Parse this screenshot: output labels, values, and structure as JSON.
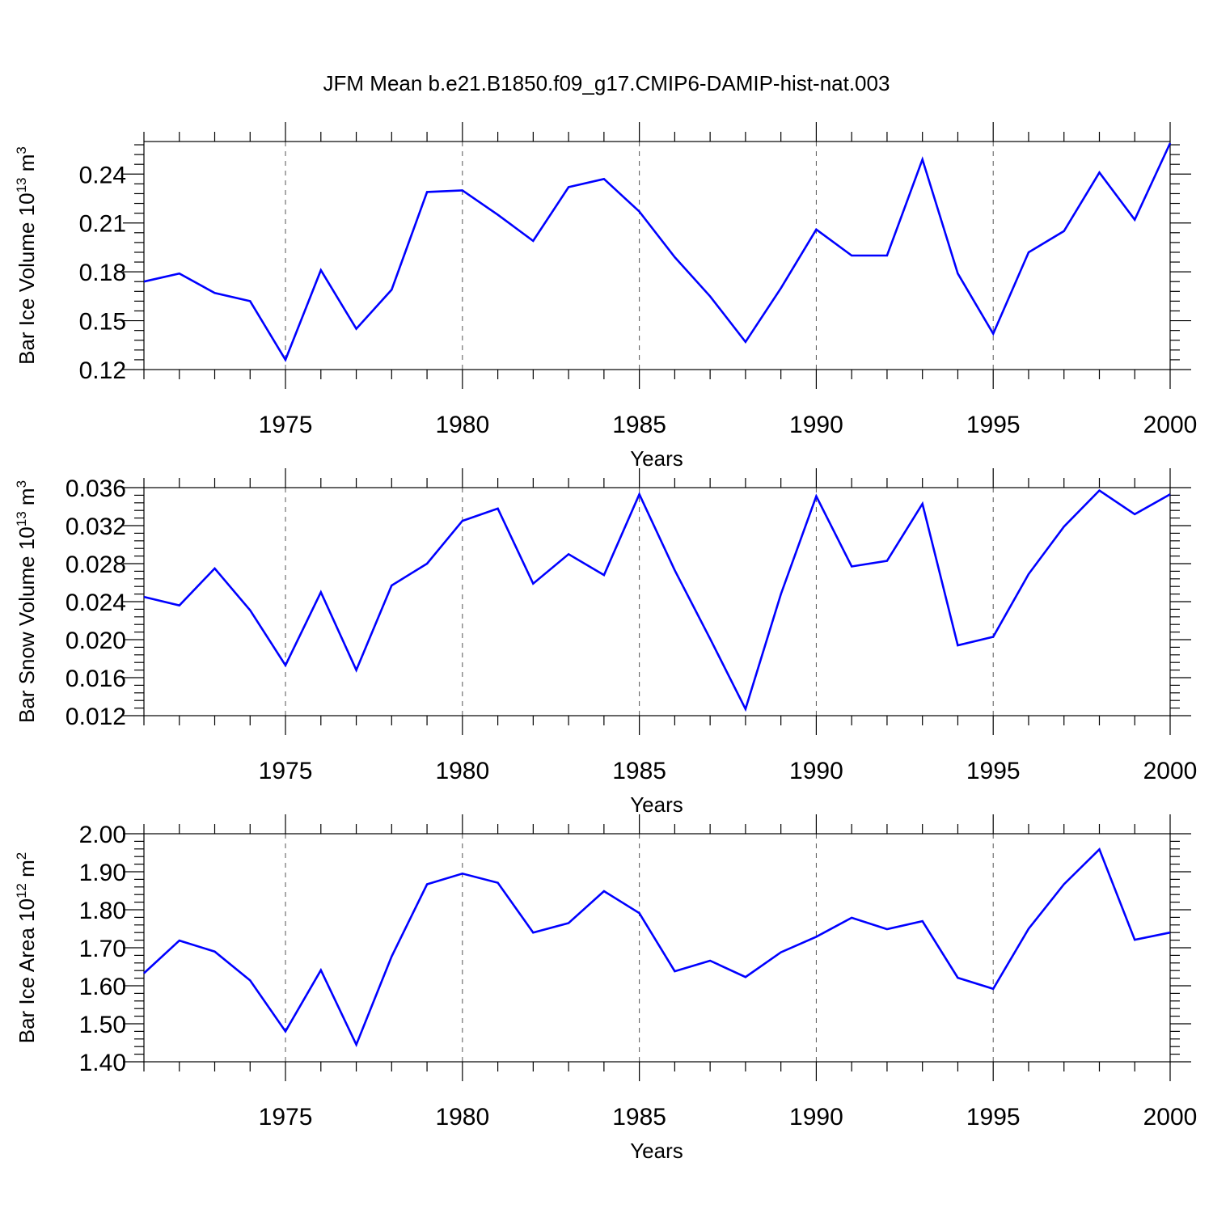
{
  "title": "JFM Mean b.e21.B1850.f09_g17.CMIP6-DAMIP-hist-nat.003",
  "chart_data": [
    {
      "type": "line",
      "name": "bar-ice-volume",
      "ylabel": "Bar Ice Volume",
      "ylabel_unit_base": "10",
      "ylabel_unit_exp": "13",
      "ylabel_unit": "m",
      "ylabel_unit_pow": "3",
      "xlabel": "Years",
      "xlim": [
        1971,
        2000
      ],
      "ylim": [
        0.12,
        0.26
      ],
      "xticks": [
        1975,
        1980,
        1985,
        1990,
        1995,
        2000
      ],
      "xtick_labels": [
        "1975",
        "1980",
        "1985",
        "1990",
        "1995",
        "2000"
      ],
      "yticks": [
        0.12,
        0.15,
        0.18,
        0.21,
        0.24
      ],
      "ytick_labels": [
        "0.12",
        "0.15",
        "0.18",
        "0.21",
        "0.24"
      ],
      "color": "#0000ff",
      "x": [
        1971,
        1972,
        1973,
        1974,
        1975,
        1976,
        1977,
        1978,
        1979,
        1980,
        1981,
        1982,
        1983,
        1984,
        1985,
        1986,
        1987,
        1988,
        1989,
        1990,
        1991,
        1992,
        1993,
        1994,
        1995,
        1996,
        1997,
        1998,
        1999,
        2000
      ],
      "y": [
        0.174,
        0.179,
        0.167,
        0.162,
        0.126,
        0.181,
        0.145,
        0.169,
        0.229,
        0.23,
        0.215,
        0.199,
        0.232,
        0.237,
        0.217,
        0.189,
        0.165,
        0.137,
        0.17,
        0.206,
        0.19,
        0.19,
        0.249,
        0.179,
        0.142,
        0.192,
        0.205,
        0.241,
        0.212,
        0.259
      ]
    },
    {
      "type": "line",
      "name": "bar-snow-volume",
      "ylabel": "Bar Snow Volume",
      "ylabel_unit_base": "10",
      "ylabel_unit_exp": "13",
      "ylabel_unit": "m",
      "ylabel_unit_pow": "3",
      "xlabel": "Years",
      "xlim": [
        1971,
        2000
      ],
      "ylim": [
        0.012,
        0.036
      ],
      "xticks": [
        1975,
        1980,
        1985,
        1990,
        1995,
        2000
      ],
      "xtick_labels": [
        "1975",
        "1980",
        "1985",
        "1990",
        "1995",
        "2000"
      ],
      "yticks": [
        0.012,
        0.016,
        0.02,
        0.024,
        0.028,
        0.032,
        0.036
      ],
      "ytick_labels": [
        "0.012",
        "0.016",
        "0.020",
        "0.024",
        "0.028",
        "0.032",
        "0.036"
      ],
      "color": "#0000ff",
      "x": [
        1971,
        1972,
        1973,
        1974,
        1975,
        1976,
        1977,
        1978,
        1979,
        1980,
        1981,
        1982,
        1983,
        1984,
        1985,
        1986,
        1987,
        1988,
        1989,
        1990,
        1991,
        1992,
        1993,
        1994,
        1995,
        1996,
        1997,
        1998,
        1999,
        2000
      ],
      "y": [
        0.0245,
        0.0236,
        0.0275,
        0.0231,
        0.0173,
        0.025,
        0.0168,
        0.0257,
        0.028,
        0.0325,
        0.0338,
        0.0259,
        0.029,
        0.0268,
        0.0353,
        0.0273,
        0.0201,
        0.0127,
        0.0248,
        0.0351,
        0.0277,
        0.0283,
        0.0343,
        0.0194,
        0.0203,
        0.0269,
        0.0319,
        0.0357,
        0.0332,
        0.0353
      ]
    },
    {
      "type": "line",
      "name": "bar-ice-area",
      "ylabel": "Bar Ice Area",
      "ylabel_unit_base": "10",
      "ylabel_unit_exp": "12",
      "ylabel_unit": "m",
      "ylabel_unit_pow": "2",
      "xlabel": "Years",
      "xlim": [
        1971,
        2000
      ],
      "ylim": [
        1.4,
        2.0
      ],
      "xticks": [
        1975,
        1980,
        1985,
        1990,
        1995,
        2000
      ],
      "xtick_labels": [
        "1975",
        "1980",
        "1985",
        "1990",
        "1995",
        "2000"
      ],
      "yticks": [
        1.4,
        1.5,
        1.6,
        1.7,
        1.8,
        1.9,
        2.0
      ],
      "ytick_labels": [
        "1.40",
        "1.50",
        "1.60",
        "1.70",
        "1.80",
        "1.90",
        "2.00"
      ],
      "color": "#0000ff",
      "x": [
        1971,
        1972,
        1973,
        1974,
        1975,
        1976,
        1977,
        1978,
        1979,
        1980,
        1981,
        1982,
        1983,
        1984,
        1985,
        1986,
        1987,
        1988,
        1989,
        1990,
        1991,
        1992,
        1993,
        1994,
        1995,
        1996,
        1997,
        1998,
        1999,
        2000
      ],
      "y": [
        1.633,
        1.719,
        1.69,
        1.614,
        1.48,
        1.641,
        1.445,
        1.677,
        1.867,
        1.895,
        1.871,
        1.74,
        1.765,
        1.849,
        1.791,
        1.638,
        1.666,
        1.623,
        1.688,
        1.729,
        1.779,
        1.749,
        1.77,
        1.621,
        1.592,
        1.75,
        1.867,
        1.959,
        1.721,
        1.74
      ]
    }
  ]
}
